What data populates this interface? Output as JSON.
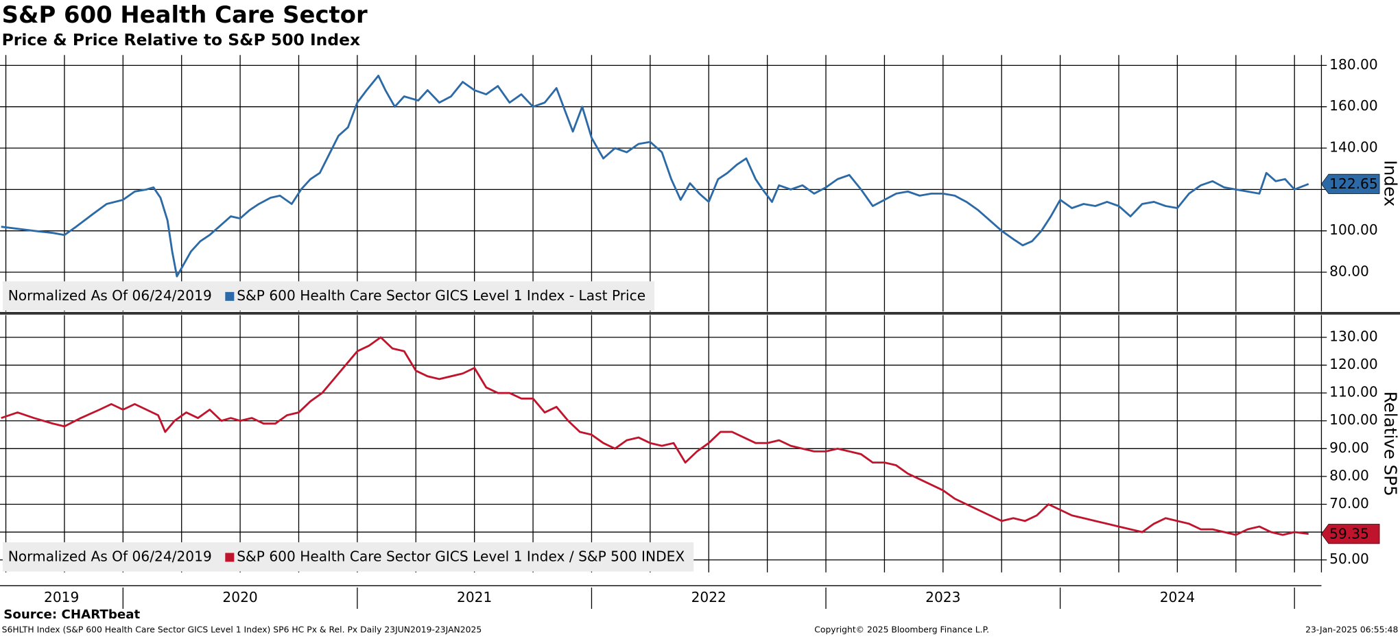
{
  "chart_data": [
    {
      "type": "line",
      "title": "S&P 600 Health Care Sector",
      "subtitle": "Price & Price Relative to S&P 500 Index",
      "ylabel": "Index",
      "note": "Normalized As Of 06/24/2019",
      "x": [
        2019.48,
        2019.55,
        2019.62,
        2019.7,
        2019.75,
        2019.8,
        2019.87,
        2019.93,
        2020.0,
        2020.05,
        2020.1,
        2020.13,
        2020.16,
        2020.19,
        2020.21,
        2020.23,
        2020.25,
        2020.29,
        2020.33,
        2020.37,
        2020.42,
        2020.46,
        2020.5,
        2020.54,
        2020.58,
        2020.63,
        2020.67,
        2020.72,
        2020.76,
        2020.8,
        2020.84,
        2020.88,
        2020.92,
        2020.96,
        2021.0,
        2021.04,
        2021.09,
        2021.12,
        2021.16,
        2021.2,
        2021.26,
        2021.3,
        2021.35,
        2021.4,
        2021.45,
        2021.5,
        2021.55,
        2021.6,
        2021.65,
        2021.7,
        2021.75,
        2021.8,
        2021.85,
        2021.88,
        2021.92,
        2021.96,
        2022.0,
        2022.05,
        2022.1,
        2022.15,
        2022.2,
        2022.25,
        2022.3,
        2022.34,
        2022.38,
        2022.42,
        2022.46,
        2022.5,
        2022.54,
        2022.58,
        2022.62,
        2022.66,
        2022.7,
        2022.73,
        2022.77,
        2022.8,
        2022.85,
        2022.9,
        2022.95,
        2023.0,
        2023.05,
        2023.1,
        2023.15,
        2023.2,
        2023.25,
        2023.3,
        2023.35,
        2023.4,
        2023.45,
        2023.5,
        2023.55,
        2023.6,
        2023.65,
        2023.7,
        2023.75,
        2023.8,
        2023.84,
        2023.88,
        2023.92,
        2023.96,
        2024.0,
        2024.05,
        2024.1,
        2024.15,
        2024.2,
        2024.25,
        2024.3,
        2024.35,
        2024.4,
        2024.45,
        2024.5,
        2024.55,
        2024.6,
        2024.65,
        2024.7,
        2024.75,
        2024.8,
        2024.85,
        2024.88,
        2024.92,
        2024.96,
        2025.0,
        2025.06
      ],
      "series": [
        {
          "name": "S&P 600 Health Care Sector GICS Level 1 Index - Last Price",
          "color": "#2b6aa6",
          "values": [
            102,
            101,
            100,
            99,
            98,
            102,
            108,
            113,
            115,
            119,
            120,
            121,
            116,
            105,
            90,
            78,
            82,
            90,
            95,
            98,
            103,
            107,
            106,
            110,
            113,
            116,
            117,
            113,
            120,
            125,
            128,
            137,
            146,
            150,
            162,
            168,
            175,
            168,
            160,
            165,
            163,
            168,
            162,
            165,
            172,
            168,
            166,
            170,
            162,
            166,
            160,
            162,
            169,
            160,
            148,
            160,
            145,
            135,
            140,
            138,
            142,
            143,
            138,
            125,
            115,
            123,
            118,
            114,
            125,
            128,
            132,
            135,
            125,
            120,
            114,
            122,
            120,
            122,
            118,
            121,
            125,
            127,
            120,
            112,
            115,
            118,
            119,
            117,
            118,
            118,
            117,
            114,
            110,
            105,
            100,
            96,
            93,
            95,
            100,
            107,
            115,
            111,
            113,
            112,
            114,
            112,
            107,
            113,
            114,
            112,
            111,
            118,
            122,
            124,
            121,
            120,
            119,
            118,
            128,
            124,
            125,
            120,
            122.65
          ]
        }
      ],
      "xlim": [
        2019.475,
        2025.115
      ],
      "ylim": [
        61,
        185
      ],
      "yticks": [
        {
          "value": 80,
          "label": "80.00"
        },
        {
          "value": 100,
          "label": "100.00"
        },
        {
          "value": 120,
          "label": "120.00"
        },
        {
          "value": 140,
          "label": "140.00"
        },
        {
          "value": 160,
          "label": "160.00"
        },
        {
          "value": 180,
          "label": "180.00"
        }
      ],
      "xgrid": [
        2019.5,
        2019.75,
        2020,
        2020.25,
        2020.5,
        2020.75,
        2021,
        2021.25,
        2021.5,
        2021.75,
        2022,
        2022.25,
        2022.5,
        2022.75,
        2023,
        2023.25,
        2023.5,
        2023.75,
        2024,
        2024.25,
        2024.5,
        2024.75,
        2025
      ]
    },
    {
      "type": "line",
      "ylabel": "Relative SP5",
      "note": "Normalized As Of 06/24/2019",
      "x": [
        2019.48,
        2019.55,
        2019.62,
        2019.7,
        2019.75,
        2019.82,
        2019.9,
        2019.95,
        2020.0,
        2020.05,
        2020.1,
        2020.15,
        2020.18,
        2020.22,
        2020.27,
        2020.32,
        2020.37,
        2020.42,
        2020.46,
        2020.5,
        2020.55,
        2020.6,
        2020.65,
        2020.7,
        2020.75,
        2020.8,
        2020.85,
        2020.9,
        2020.95,
        2021.0,
        2021.05,
        2021.1,
        2021.15,
        2021.2,
        2021.25,
        2021.3,
        2021.35,
        2021.4,
        2021.45,
        2021.5,
        2021.55,
        2021.6,
        2021.65,
        2021.7,
        2021.75,
        2021.8,
        2021.85,
        2021.9,
        2021.95,
        2022.0,
        2022.05,
        2022.1,
        2022.15,
        2022.2,
        2022.25,
        2022.3,
        2022.35,
        2022.4,
        2022.45,
        2022.5,
        2022.55,
        2022.6,
        2022.65,
        2022.7,
        2022.75,
        2022.8,
        2022.85,
        2022.9,
        2022.95,
        2023.0,
        2023.05,
        2023.1,
        2023.15,
        2023.2,
        2023.25,
        2023.3,
        2023.35,
        2023.4,
        2023.45,
        2023.5,
        2023.55,
        2023.6,
        2023.65,
        2023.7,
        2023.75,
        2023.8,
        2023.85,
        2023.9,
        2023.95,
        2024.0,
        2024.05,
        2024.1,
        2024.15,
        2024.2,
        2024.25,
        2024.3,
        2024.35,
        2024.4,
        2024.45,
        2024.5,
        2024.55,
        2024.6,
        2024.65,
        2024.7,
        2024.75,
        2024.8,
        2024.85,
        2024.9,
        2024.95,
        2025.0,
        2025.06
      ],
      "series": [
        {
          "name": "S&P 600 Health Care Sector GICS Level 1 Index / S&P 500 INDEX",
          "color": "#c0142c",
          "values": [
            101,
            103,
            101,
            99,
            98,
            101,
            104,
            106,
            104,
            106,
            104,
            102,
            96,
            100,
            103,
            101,
            104,
            100,
            101,
            100,
            101,
            99,
            99,
            102,
            103,
            107,
            110,
            115,
            120,
            125,
            127,
            130,
            126,
            125,
            118,
            116,
            115,
            116,
            117,
            119,
            112,
            110,
            110,
            108,
            108,
            103,
            105,
            100,
            96,
            95,
            92,
            90,
            93,
            94,
            92,
            91,
            92,
            85,
            89,
            92,
            96,
            96,
            94,
            92,
            92,
            93,
            91,
            90,
            89,
            89,
            90,
            89,
            88,
            85,
            85,
            84,
            81,
            79,
            77,
            75,
            72,
            70,
            68,
            66,
            64,
            65,
            64,
            66,
            70,
            68,
            66,
            65,
            64,
            63,
            62,
            61,
            60,
            63,
            65,
            64,
            63,
            61,
            61,
            60,
            59,
            61,
            62,
            60,
            59,
            60,
            59.35
          ]
        }
      ],
      "xlim": [
        2019.475,
        2025.115
      ],
      "ylim": [
        45.5,
        138
      ],
      "yticks": [
        {
          "value": 50,
          "label": "50.00"
        },
        {
          "value": 60,
          "label": "60.00"
        },
        {
          "value": 70,
          "label": "70.00"
        },
        {
          "value": 80,
          "label": "80.00"
        },
        {
          "value": 90,
          "label": "90.00"
        },
        {
          "value": 100,
          "label": "100.00"
        },
        {
          "value": 110,
          "label": "110.00"
        },
        {
          "value": 120,
          "label": "120.00"
        },
        {
          "value": 130,
          "label": "130.00"
        }
      ],
      "xticks": [
        2019,
        2020,
        2021,
        2022,
        2023,
        2024
      ],
      "xgrid": [
        2019.5,
        2019.75,
        2020,
        2020.25,
        2020.5,
        2020.75,
        2021,
        2021.25,
        2021.5,
        2021.75,
        2022,
        2022.25,
        2022.5,
        2022.75,
        2023,
        2023.25,
        2023.5,
        2023.75,
        2024,
        2024.25,
        2024.5,
        2024.75,
        2025
      ]
    }
  ],
  "source": "Source: CHARTbeat",
  "footer": {
    "left": "S6HLTH Index (S&P 600 Health Care Sector GICS Level 1 Index) SP6 HC Px & Rel. Px  Daily 23JUN2019-23JAN2025",
    "center": "Copyright© 2025 Bloomberg Finance L.P.",
    "right": "23-Jan-2025 06:55:48"
  }
}
